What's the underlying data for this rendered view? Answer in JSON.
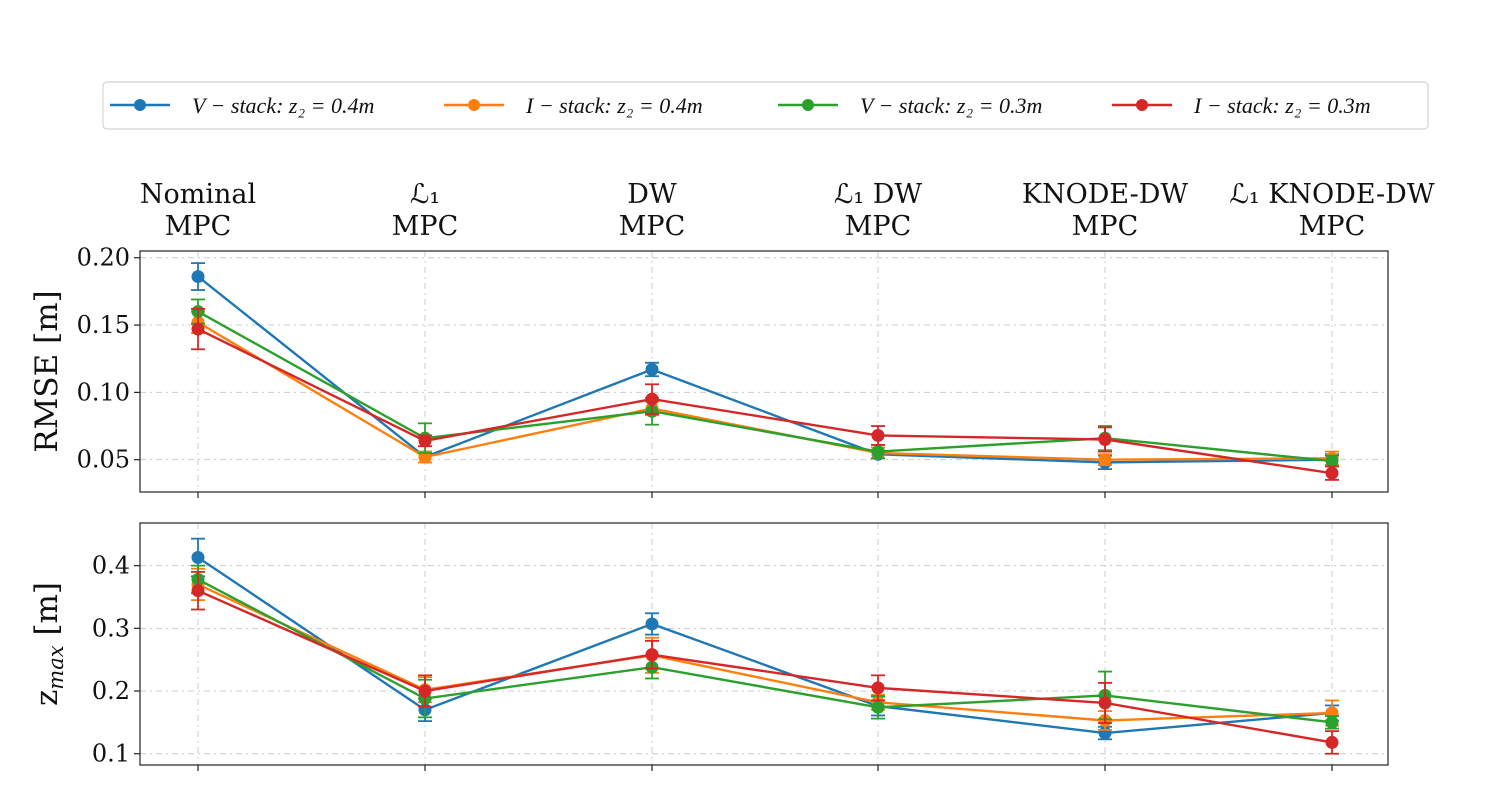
{
  "chart_data": {
    "type": "line",
    "categories": [
      "Nominal MPC",
      "ℒ1 MPC",
      "DW MPC",
      "ℒ1 DW MPC",
      "KNODE-DW MPC",
      "ℒ1 KNODE-DW MPC"
    ],
    "category_lines": [
      [
        "Nominal",
        "MPC"
      ],
      [
        "ℒ₁",
        "MPC"
      ],
      [
        "DW",
        "MPC"
      ],
      [
        "ℒ₁ DW",
        "MPC"
      ],
      [
        "KNODE-DW",
        "MPC"
      ],
      [
        "ℒ₁ KNODE-DW",
        "MPC"
      ]
    ],
    "legend": {
      "position": "top",
      "entries": [
        {
          "prefix": "V − stack",
          "suffix": ": z₂ = 0.4m"
        },
        {
          "prefix": "I − stack",
          "suffix": ": z₂ = 0.4m"
        },
        {
          "prefix": "V − stack",
          "suffix": ": z₂ = 0.3m"
        },
        {
          "prefix": "I − stack",
          "suffix": ": z₂ = 0.3m"
        }
      ]
    },
    "series_colors": [
      "#1f77b4",
      "#ff7f0e",
      "#2ca02c",
      "#d62728"
    ],
    "panels": [
      {
        "ylabel": "RMSE [m]",
        "ylim": [
          0.026,
          0.205
        ],
        "yticks": [
          0.05,
          0.1,
          0.15,
          0.2
        ],
        "ytick_labels": [
          "0.05",
          "0.10",
          "0.15",
          "0.20"
        ],
        "grid": true,
        "series": [
          {
            "name": "V-stack: z2 = 0.4m",
            "values": [
              0.186,
              0.052,
              0.117,
              0.054,
              0.048,
              0.05
            ],
            "errors": [
              0.01,
              0.004,
              0.005,
              0.003,
              0.005,
              0.004
            ]
          },
          {
            "name": "I-stack: z2 = 0.4m",
            "values": [
              0.152,
              0.052,
              0.088,
              0.055,
              0.05,
              0.051
            ],
            "errors": [
              0.008,
              0.004,
              0.005,
              0.004,
              0.004,
              0.005
            ]
          },
          {
            "name": "V-stack: z2 = 0.3m",
            "values": [
              0.16,
              0.066,
              0.086,
              0.056,
              0.066,
              0.049
            ],
            "errors": [
              0.009,
              0.011,
              0.01,
              0.005,
              0.009,
              0.004
            ]
          },
          {
            "name": "I-stack: z2 = 0.3m",
            "values": [
              0.147,
              0.064,
              0.095,
              0.068,
              0.065,
              0.04
            ],
            "errors": [
              0.015,
              0.004,
              0.011,
              0.007,
              0.009,
              0.005
            ]
          }
        ]
      },
      {
        "ylabel": "z",
        "ylabel_sub": "max",
        "ylabel_unit": " [m]",
        "ylim": [
          0.082,
          0.468
        ],
        "yticks": [
          0.1,
          0.2,
          0.3,
          0.4
        ],
        "ytick_labels": [
          "0.1",
          "0.2",
          "0.3",
          "0.4"
        ],
        "grid": true,
        "series": [
          {
            "name": "V-stack: z2 = 0.4m",
            "values": [
              0.413,
              0.17,
              0.307,
              0.176,
              0.133,
              0.165
            ],
            "errors": [
              0.03,
              0.018,
              0.017,
              0.015,
              0.01,
              0.012
            ]
          },
          {
            "name": "I-stack: z2 = 0.4m",
            "values": [
              0.37,
              0.202,
              0.257,
              0.182,
              0.153,
              0.165
            ],
            "errors": [
              0.025,
              0.02,
              0.028,
              0.012,
              0.015,
              0.02
            ]
          },
          {
            "name": "V-stack: z2 = 0.3m",
            "values": [
              0.378,
              0.188,
              0.238,
              0.174,
              0.193,
              0.15
            ],
            "errors": [
              0.022,
              0.03,
              0.018,
              0.018,
              0.038,
              0.01
            ]
          },
          {
            "name": "I-stack: z2 = 0.3m",
            "values": [
              0.36,
              0.2,
              0.258,
              0.205,
              0.181,
              0.118
            ],
            "errors": [
              0.03,
              0.025,
              0.022,
              0.02,
              0.032,
              0.018
            ]
          }
        ]
      }
    ]
  }
}
